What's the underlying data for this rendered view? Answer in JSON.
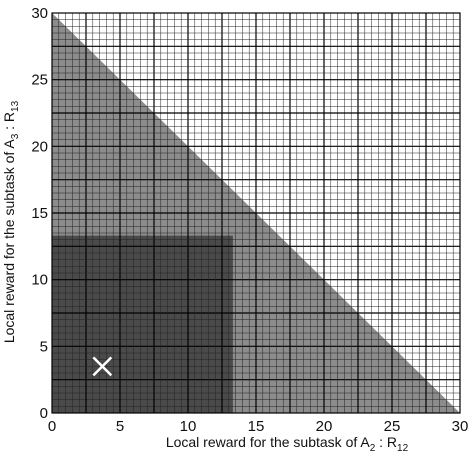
{
  "chart_data": {
    "type": "heatmap",
    "title": "",
    "x_axis": {
      "label_main": "Local reward for the subtask of A",
      "label_sub": "2",
      "label_mid": " : R",
      "label_sub2": "12",
      "range": [
        0,
        30
      ],
      "ticks": [
        0,
        5,
        10,
        15,
        20,
        25,
        30
      ]
    },
    "y_axis": {
      "label_main": "Local reward for the subtask of A",
      "label_sub": "3",
      "label_mid": " : R",
      "label_sub2": "13",
      "range": [
        0,
        30
      ],
      "ticks": [
        0,
        5,
        10,
        15,
        20,
        25,
        30
      ]
    },
    "grid": true,
    "grid_fine_step": 0.5,
    "grid_major_step": 2.5,
    "regions": [
      {
        "name": "feasible",
        "shape": "triangle",
        "vertices": [
          [
            0,
            0
          ],
          [
            30,
            0
          ],
          [
            0,
            30
          ]
        ],
        "color": "#8c8c8c"
      },
      {
        "name": "inner",
        "shape": "rect",
        "x": [
          0,
          13.3
        ],
        "y": [
          0,
          13.3
        ],
        "color": "#4a4a4a"
      }
    ],
    "marker": {
      "symbol": "×",
      "x": 3.7,
      "y": 3.5,
      "color": "#ffffff"
    }
  }
}
